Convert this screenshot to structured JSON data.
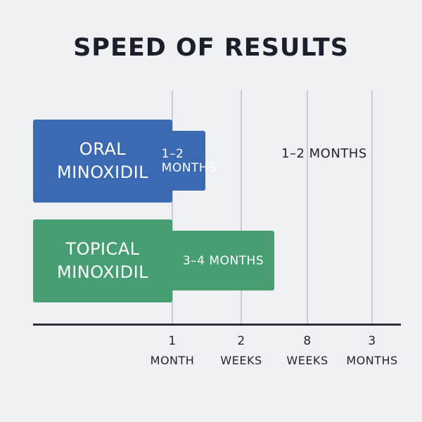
{
  "colors": {
    "oral": "#3b69b2",
    "topical": "#469e72",
    "background": "#eef0f3"
  },
  "chart_data": {
    "type": "bar",
    "orientation": "horizontal",
    "title": "SPEED OF RESULTS",
    "categories": [
      "ORAL\nMINOXIDIL",
      "TOPICAL\nMINOXIDIL"
    ],
    "x_ticks": [
      {
        "num": "1",
        "unit": "MONTH"
      },
      {
        "num": "2",
        "unit": "WEEKS"
      },
      {
        "num": "8",
        "unit": "WEEKS"
      },
      {
        "num": "3",
        "unit": "MONTHS"
      }
    ],
    "series": [
      {
        "category": "ORAL\nMINOXIDIL",
        "bar_label": "1–2 MONTHS",
        "outside_label": "1–2 MONTHS",
        "end_tick": 1.48
      },
      {
        "category": "TOPICAL\nMINOXIDIL",
        "bar_label": "3–4 MONTHS",
        "outside_label": "",
        "end_tick": 2.5
      }
    ],
    "grid": true,
    "legend": "none"
  }
}
